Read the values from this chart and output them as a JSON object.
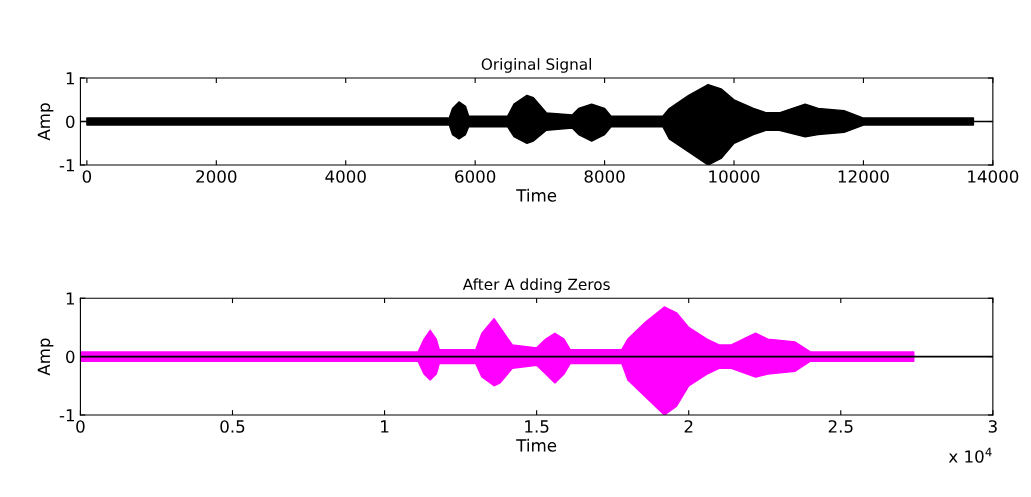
{
  "chart_data": [
    {
      "type": "area",
      "title": "Original Signal",
      "xlabel": "Time",
      "ylabel": "Amp",
      "xlim": [
        -100,
        14000
      ],
      "ylim": [
        -1,
        1
      ],
      "xticks": [
        0,
        2000,
        4000,
        6000,
        8000,
        10000,
        12000,
        14000
      ],
      "yticks": [
        -1,
        0,
        1
      ],
      "grid": false,
      "legend": false,
      "ref_lines": [
        {
          "axis": "y",
          "value": 0,
          "color": "#000000"
        }
      ],
      "series": [
        {
          "color": "#000000",
          "x": [
            0,
            5600,
            5650,
            5750,
            5850,
            5900,
            6500,
            6600,
            6800,
            6900,
            7100,
            7500,
            7600,
            7800,
            8000,
            8100,
            8900,
            9000,
            9300,
            9600,
            9800,
            10000,
            10300,
            10500,
            10700,
            11100,
            11300,
            11700,
            12000,
            13700
          ],
          "values": [
            0.08,
            0.08,
            0.3,
            0.45,
            0.35,
            0.12,
            0.12,
            0.4,
            0.6,
            0.55,
            0.2,
            0.15,
            0.3,
            0.4,
            0.3,
            0.12,
            0.12,
            0.3,
            0.6,
            0.85,
            0.75,
            0.5,
            0.3,
            0.2,
            0.2,
            0.4,
            0.3,
            0.25,
            0.08,
            0.08
          ]
        },
        {
          "color": "#000000",
          "x": [
            0,
            5600,
            5650,
            5750,
            5850,
            5900,
            6500,
            6600,
            6800,
            6900,
            7100,
            7500,
            7600,
            7800,
            8000,
            8100,
            8900,
            9000,
            9300,
            9600,
            9800,
            10000,
            10300,
            10500,
            10700,
            11100,
            11300,
            11700,
            12000,
            13700
          ],
          "values": [
            -0.08,
            -0.08,
            -0.3,
            -0.4,
            -0.3,
            -0.12,
            -0.12,
            -0.35,
            -0.5,
            -0.45,
            -0.2,
            -0.15,
            -0.3,
            -0.45,
            -0.3,
            -0.12,
            -0.12,
            -0.4,
            -0.7,
            -1.0,
            -0.85,
            -0.5,
            -0.3,
            -0.2,
            -0.2,
            -0.35,
            -0.3,
            -0.25,
            -0.08,
            -0.08
          ]
        }
      ]
    },
    {
      "type": "area",
      "title": "After A dding Zeros",
      "xlabel": "Time",
      "ylabel": "Amp",
      "xlim": [
        0,
        3
      ],
      "ylim": [
        -1,
        1
      ],
      "xticks": [
        0,
        0.5,
        1,
        1.5,
        2,
        2.5,
        3
      ],
      "yticks": [
        -1,
        0,
        1
      ],
      "grid": false,
      "legend": false,
      "annotations": [
        "x 10$^{4}$"
      ],
      "ref_lines": [
        {
          "axis": "y",
          "value": 0,
          "color": "#000000"
        }
      ],
      "series": [
        {
          "color": "#ff00ff",
          "x": [
            0,
            1.11,
            1.13,
            1.15,
            1.17,
            1.18,
            1.3,
            1.32,
            1.36,
            1.38,
            1.42,
            1.5,
            1.53,
            1.56,
            1.59,
            1.61,
            1.78,
            1.8,
            1.86,
            1.92,
            1.96,
            2.0,
            2.06,
            2.1,
            2.14,
            2.22,
            2.26,
            2.35,
            2.4,
            2.74
          ],
          "values": [
            0.08,
            0.08,
            0.3,
            0.45,
            0.3,
            0.12,
            0.12,
            0.4,
            0.65,
            0.5,
            0.2,
            0.15,
            0.3,
            0.4,
            0.3,
            0.12,
            0.12,
            0.3,
            0.6,
            0.85,
            0.75,
            0.5,
            0.3,
            0.2,
            0.2,
            0.4,
            0.3,
            0.25,
            0.08,
            0.08
          ]
        },
        {
          "color": "#ff00ff",
          "x": [
            0,
            1.11,
            1.13,
            1.15,
            1.17,
            1.18,
            1.3,
            1.32,
            1.36,
            1.38,
            1.42,
            1.5,
            1.53,
            1.56,
            1.59,
            1.61,
            1.78,
            1.8,
            1.86,
            1.92,
            1.96,
            2.0,
            2.06,
            2.1,
            2.14,
            2.22,
            2.26,
            2.35,
            2.4,
            2.74
          ],
          "values": [
            -0.08,
            -0.08,
            -0.3,
            -0.4,
            -0.3,
            -0.12,
            -0.12,
            -0.35,
            -0.5,
            -0.45,
            -0.2,
            -0.15,
            -0.3,
            -0.45,
            -0.3,
            -0.12,
            -0.12,
            -0.4,
            -0.7,
            -1.0,
            -0.85,
            -0.5,
            -0.3,
            -0.2,
            -0.2,
            -0.35,
            -0.3,
            -0.25,
            -0.08,
            -0.08
          ]
        }
      ]
    }
  ]
}
